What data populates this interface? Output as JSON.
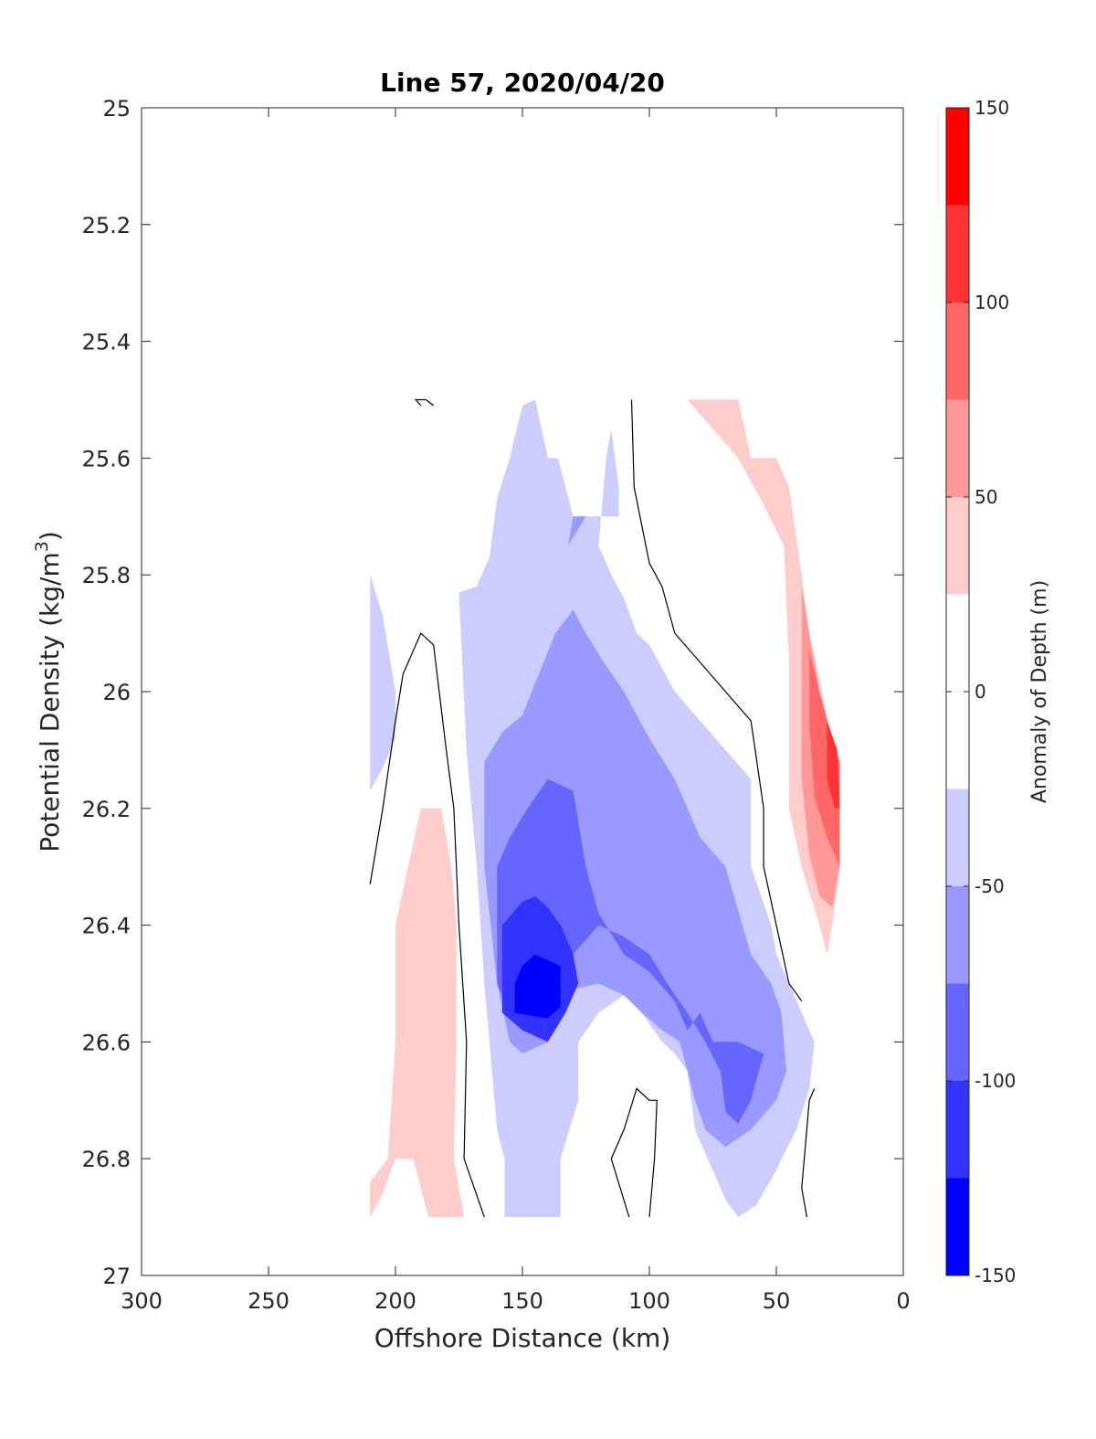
{
  "chart_data": {
    "type": "contour",
    "title": "Line 57, 2020/04/20",
    "xlabel": "Offshore Distance (km)",
    "ylabel_main": "Potential Density (kg/m",
    "ylabel_sup": "3",
    "ylabel_close": ")",
    "xlim": [
      300,
      0
    ],
    "ylim": [
      25,
      27
    ],
    "xticks": [
      300,
      250,
      200,
      150,
      100,
      50,
      0
    ],
    "xtick_labels": [
      "300",
      "250",
      "200",
      "150",
      "100",
      "50",
      "0"
    ],
    "yticks": [
      25,
      25.2,
      25.4,
      25.6,
      25.8,
      26,
      26.2,
      26.4,
      26.6,
      26.8,
      27
    ],
    "ytick_labels": [
      "25",
      "25.2",
      "25.4",
      "25.6",
      "25.8",
      "26",
      "26.2",
      "26.4",
      "26.6",
      "26.8",
      "27"
    ],
    "colorbar": {
      "label": "Anomaly of Depth (m)",
      "range": [
        -150,
        150
      ],
      "ticks": [
        150,
        100,
        50,
        0,
        -50,
        -100,
        -150
      ],
      "tick_labels": [
        "150",
        "100",
        "50",
        "0",
        "-50",
        "-100",
        "-150"
      ],
      "levels": [
        {
          "min": -150,
          "max": -125,
          "color": "#0000ff"
        },
        {
          "min": -125,
          "max": -100,
          "color": "#3333ff"
        },
        {
          "min": -100,
          "max": -75,
          "color": "#6666ff"
        },
        {
          "min": -75,
          "max": -50,
          "color": "#9999ff"
        },
        {
          "min": -50,
          "max": -25,
          "color": "#ccccff"
        },
        {
          "min": -25,
          "max": 25,
          "color": "#ffffff"
        },
        {
          "min": 25,
          "max": 50,
          "color": "#ffcccc"
        },
        {
          "min": 50,
          "max": 75,
          "color": "#ff9999"
        },
        {
          "min": 75,
          "max": 100,
          "color": "#ff6666"
        },
        {
          "min": 100,
          "max": 125,
          "color": "#ff3333"
        },
        {
          "min": 125,
          "max": 150,
          "color": "#ff0000"
        }
      ]
    },
    "filled_regions": [
      {
        "name": "region-offshore-blue",
        "color": "#ccccff",
        "points": [
          [
            210,
            25.8
          ],
          [
            205,
            25.87
          ],
          [
            200,
            26
          ],
          [
            200,
            26.08
          ],
          [
            205,
            26.13
          ],
          [
            210,
            26.17
          ]
        ]
      },
      {
        "name": "region-offshore-pink",
        "color": "#ffcccc",
        "points": [
          [
            190,
            26.2
          ],
          [
            182,
            26.2
          ],
          [
            178,
            26.3
          ],
          [
            176,
            26.4
          ],
          [
            176,
            26.6
          ],
          [
            177,
            26.8
          ],
          [
            173,
            26.9
          ],
          [
            187,
            26.9
          ],
          [
            193,
            26.8
          ],
          [
            200,
            26.8
          ],
          [
            205,
            26.86
          ],
          [
            210,
            26.9
          ],
          [
            210,
            26.84
          ],
          [
            203,
            26.8
          ],
          [
            200,
            26.6
          ],
          [
            200,
            26.4
          ],
          [
            195,
            26.3
          ]
        ]
      },
      {
        "name": "region-band-minus-25",
        "color": "#ccccff",
        "points": [
          [
            150,
            25.51
          ],
          [
            155,
            25.6
          ],
          [
            160,
            25.67
          ],
          [
            163,
            25.77
          ],
          [
            168,
            25.82
          ],
          [
            175,
            25.83
          ],
          [
            172,
            26.1
          ],
          [
            168,
            26.3
          ],
          [
            165,
            26.5
          ],
          [
            163,
            26.6
          ],
          [
            160,
            26.75
          ],
          [
            157,
            26.8
          ],
          [
            157,
            26.9
          ],
          [
            135,
            26.9
          ],
          [
            135,
            26.8
          ],
          [
            128,
            26.7
          ],
          [
            128,
            26.6
          ],
          [
            120,
            26.55
          ],
          [
            110,
            26.52
          ],
          [
            103,
            26.55
          ],
          [
            95,
            26.6
          ],
          [
            90,
            26.62
          ],
          [
            85,
            26.65
          ],
          [
            82,
            26.75
          ],
          [
            75,
            26.82
          ],
          [
            70,
            26.87
          ],
          [
            65,
            26.9
          ],
          [
            58,
            26.88
          ],
          [
            50,
            26.82
          ],
          [
            48,
            26.8
          ],
          [
            42,
            26.75
          ],
          [
            37,
            26.68
          ],
          [
            35,
            26.6
          ],
          [
            40,
            26.55
          ],
          [
            45,
            26.5
          ],
          [
            50,
            26.45
          ],
          [
            52,
            26.4
          ],
          [
            60,
            26.3
          ],
          [
            60,
            26.15
          ],
          [
            70,
            26.1
          ],
          [
            80,
            26.05
          ],
          [
            90,
            26
          ],
          [
            100,
            25.92
          ],
          [
            105,
            25.9
          ],
          [
            110,
            25.84
          ],
          [
            115,
            25.8
          ],
          [
            120,
            25.75
          ],
          [
            117,
            25.6
          ],
          [
            115,
            25.55
          ],
          [
            112,
            25.65
          ],
          [
            112,
            25.7
          ],
          [
            130,
            25.7
          ],
          [
            136,
            25.6
          ],
          [
            140,
            25.6
          ],
          [
            145,
            25.5
          ]
        ]
      },
      {
        "name": "region-band-minus-50",
        "color": "#9999ff",
        "points": [
          [
            120,
            25.7
          ],
          [
            130,
            25.7
          ],
          [
            132,
            25.75
          ],
          [
            125,
            25.7
          ]
        ]
      },
      {
        "name": "region-band-minus-50-main",
        "color": "#9999ff",
        "points": [
          [
            130,
            25.86
          ],
          [
            137,
            25.9
          ],
          [
            150,
            26.04
          ],
          [
            158,
            26.07
          ],
          [
            165,
            26.12
          ],
          [
            165,
            26.3
          ],
          [
            160,
            26.5
          ],
          [
            155,
            26.6
          ],
          [
            150,
            26.62
          ],
          [
            140,
            26.6
          ],
          [
            135,
            26.55
          ],
          [
            130,
            26.51
          ],
          [
            120,
            26.5
          ],
          [
            110,
            26.52
          ],
          [
            103,
            26.55
          ],
          [
            95,
            26.58
          ],
          [
            88,
            26.6
          ],
          [
            82,
            26.7
          ],
          [
            78,
            26.75
          ],
          [
            70,
            26.78
          ],
          [
            60,
            26.75
          ],
          [
            50,
            26.7
          ],
          [
            46,
            26.65
          ],
          [
            48,
            26.55
          ],
          [
            52,
            26.5
          ],
          [
            60,
            26.45
          ],
          [
            70,
            26.3
          ],
          [
            80,
            26.25
          ],
          [
            90,
            26.15
          ],
          [
            100,
            26.08
          ],
          [
            110,
            26
          ],
          [
            118,
            25.95
          ],
          [
            125,
            25.9
          ]
        ]
      },
      {
        "name": "region-band-minus-75",
        "color": "#6666ff",
        "points": [
          [
            140,
            26.15
          ],
          [
            130,
            26.17
          ],
          [
            125,
            26.3
          ],
          [
            120,
            26.38
          ],
          [
            110,
            26.45
          ],
          [
            100,
            26.48
          ],
          [
            90,
            26.53
          ],
          [
            85,
            26.58
          ],
          [
            80,
            26.55
          ],
          [
            75,
            26.6
          ],
          [
            65,
            26.6
          ],
          [
            55,
            26.62
          ],
          [
            60,
            26.7
          ],
          [
            65,
            26.74
          ],
          [
            70,
            26.72
          ],
          [
            72,
            26.65
          ],
          [
            78,
            26.6
          ],
          [
            85,
            26.55
          ],
          [
            93,
            26.5
          ],
          [
            100,
            26.45
          ],
          [
            110,
            26.42
          ],
          [
            120,
            26.4
          ],
          [
            130,
            26.45
          ],
          [
            140,
            26.52
          ],
          [
            150,
            26.55
          ],
          [
            155,
            26.55
          ],
          [
            160,
            26.5
          ],
          [
            160,
            26.3
          ],
          [
            155,
            26.25
          ],
          [
            148,
            26.2
          ]
        ]
      },
      {
        "name": "region-band-minus-100",
        "color": "#3333ff",
        "points": [
          [
            150,
            26.36
          ],
          [
            145,
            26.35
          ],
          [
            140,
            26.37
          ],
          [
            135,
            26.4
          ],
          [
            130,
            26.45
          ],
          [
            128,
            26.5
          ],
          [
            133,
            26.55
          ],
          [
            140,
            26.6
          ],
          [
            150,
            26.58
          ],
          [
            158,
            26.55
          ],
          [
            158,
            26.4
          ]
        ]
      },
      {
        "name": "region-band-minus-125",
        "color": "#0000ff",
        "points": [
          [
            145,
            26.45
          ],
          [
            150,
            26.47
          ],
          [
            153,
            26.5
          ],
          [
            153,
            26.55
          ],
          [
            140,
            26.56
          ],
          [
            135,
            26.54
          ],
          [
            135,
            26.47
          ]
        ]
      },
      {
        "name": "region-nearshore-pink",
        "color": "#ffcccc",
        "points": [
          [
            85,
            25.5
          ],
          [
            65,
            25.5
          ],
          [
            60,
            25.6
          ],
          [
            50,
            25.6
          ],
          [
            45,
            25.65
          ],
          [
            40,
            25.8
          ],
          [
            37,
            25.9
          ],
          [
            32,
            26
          ],
          [
            28,
            26.1
          ],
          [
            25,
            26.15
          ],
          [
            25,
            26.3
          ],
          [
            28,
            26.4
          ],
          [
            30,
            26.45
          ],
          [
            33,
            26.4
          ],
          [
            40,
            26.3
          ],
          [
            45,
            26.2
          ],
          [
            45,
            26.05
          ],
          [
            45,
            25.95
          ],
          [
            47,
            25.75
          ],
          [
            55,
            25.68
          ],
          [
            65,
            25.6
          ],
          [
            75,
            25.55
          ]
        ]
      },
      {
        "name": "region-nearshore-50",
        "color": "#ff9999",
        "points": [
          [
            40,
            25.82
          ],
          [
            37,
            25.9
          ],
          [
            33,
            26
          ],
          [
            28,
            26.1
          ],
          [
            25,
            26.15
          ],
          [
            25,
            26.3
          ],
          [
            28,
            26.37
          ],
          [
            33,
            26.35
          ],
          [
            37,
            26.28
          ],
          [
            40,
            26.15
          ],
          [
            40,
            25.95
          ]
        ]
      },
      {
        "name": "region-nearshore-75",
        "color": "#ff6666",
        "points": [
          [
            37,
            25.93
          ],
          [
            33,
            26
          ],
          [
            28,
            26.08
          ],
          [
            25,
            26.12
          ],
          [
            25,
            26.3
          ],
          [
            30,
            26.25
          ],
          [
            35,
            26.18
          ],
          [
            37,
            26.05
          ]
        ]
      },
      {
        "name": "region-nearshore-100",
        "color": "#ff3333",
        "points": [
          [
            30,
            26.05
          ],
          [
            26,
            26.1
          ],
          [
            25,
            26.2
          ],
          [
            27,
            26.2
          ],
          [
            30,
            26.15
          ]
        ]
      }
    ],
    "contour_lines": [
      {
        "name": "zero-contour-offshore",
        "points": [
          [
            210,
            26.33
          ],
          [
            205,
            26.2
          ],
          [
            200,
            26.05
          ],
          [
            197,
            25.97
          ],
          [
            190,
            25.9
          ],
          [
            185,
            25.92
          ],
          [
            180,
            26.1
          ],
          [
            177,
            26.2
          ],
          [
            175,
            26.4
          ],
          [
            172,
            26.6
          ],
          [
            173,
            26.8
          ],
          [
            165,
            26.9
          ]
        ]
      },
      {
        "name": "zero-contour-middle",
        "points": [
          [
            107,
            25.5
          ],
          [
            106,
            25.65
          ],
          [
            100,
            25.78
          ],
          [
            95,
            25.82
          ],
          [
            90,
            25.9
          ],
          [
            80,
            25.95
          ],
          [
            70,
            26
          ],
          [
            60,
            26.05
          ],
          [
            55,
            26.2
          ],
          [
            55,
            26.3
          ],
          [
            50,
            26.4
          ],
          [
            45,
            26.5
          ],
          [
            40,
            26.53
          ]
        ]
      },
      {
        "name": "zero-contour-bottom-loop",
        "points": [
          [
            100,
            26.9
          ],
          [
            98,
            26.8
          ],
          [
            97,
            26.7
          ],
          [
            100,
            26.7
          ],
          [
            105,
            26.68
          ],
          [
            110,
            26.75
          ],
          [
            115,
            26.8
          ],
          [
            108,
            26.9
          ]
        ]
      },
      {
        "name": "zero-contour-edge",
        "points": [
          [
            35,
            26.68
          ],
          [
            37,
            26.7
          ],
          [
            40,
            26.85
          ],
          [
            38,
            26.9
          ]
        ]
      },
      {
        "name": "zero-contour-small-loop",
        "points": [
          [
            185,
            25.51
          ],
          [
            188,
            25.5
          ],
          [
            192,
            25.5
          ],
          [
            190,
            25.51
          ]
        ]
      }
    ]
  }
}
